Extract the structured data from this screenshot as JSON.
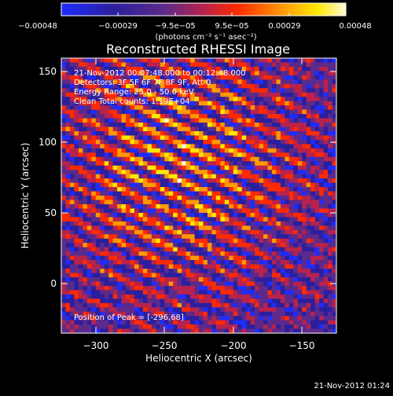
{
  "colorbar": {
    "tick_labels": [
      "−0.00048",
      "−0.00029",
      "−9.5e−05",
      "9.5e−05",
      "0.00029",
      "0.00048"
    ],
    "unit_label": "(photons cm⁻² s⁻¹ asec⁻²)",
    "colors": [
      "#1f2cff",
      "#2a1f9e",
      "#5b2a8a",
      "#b8224b",
      "#ff2a00",
      "#ff9a00",
      "#ffe800",
      "#fff9d6"
    ]
  },
  "plot": {
    "title": "Reconstructed RHESSI Image",
    "xlabel": "Heliocentric X (arcsec)",
    "ylabel": "Heliocentric Y (arcsec)",
    "xticks": [
      "−300",
      "−250",
      "−200",
      "−150"
    ],
    "yticks": [
      "0",
      "50",
      "100",
      "150"
    ],
    "xlim": [
      -330,
      -130
    ],
    "ylim": [
      -35,
      160
    ],
    "info_lines": [
      "21-Nov-2012 00:07:48.000 to 00:12:48.000",
      "Detectors: 3F 5F 6F 7F 8F 9F, Att 0",
      "Energy Range: 25.0 - 50.0 keV",
      "Clean    Total counts: 1.19E+04"
    ],
    "peak_label": "Position of Peak = [-296,68]"
  },
  "footer": {
    "timestamp": "21-Nov-2012 01:24"
  }
}
